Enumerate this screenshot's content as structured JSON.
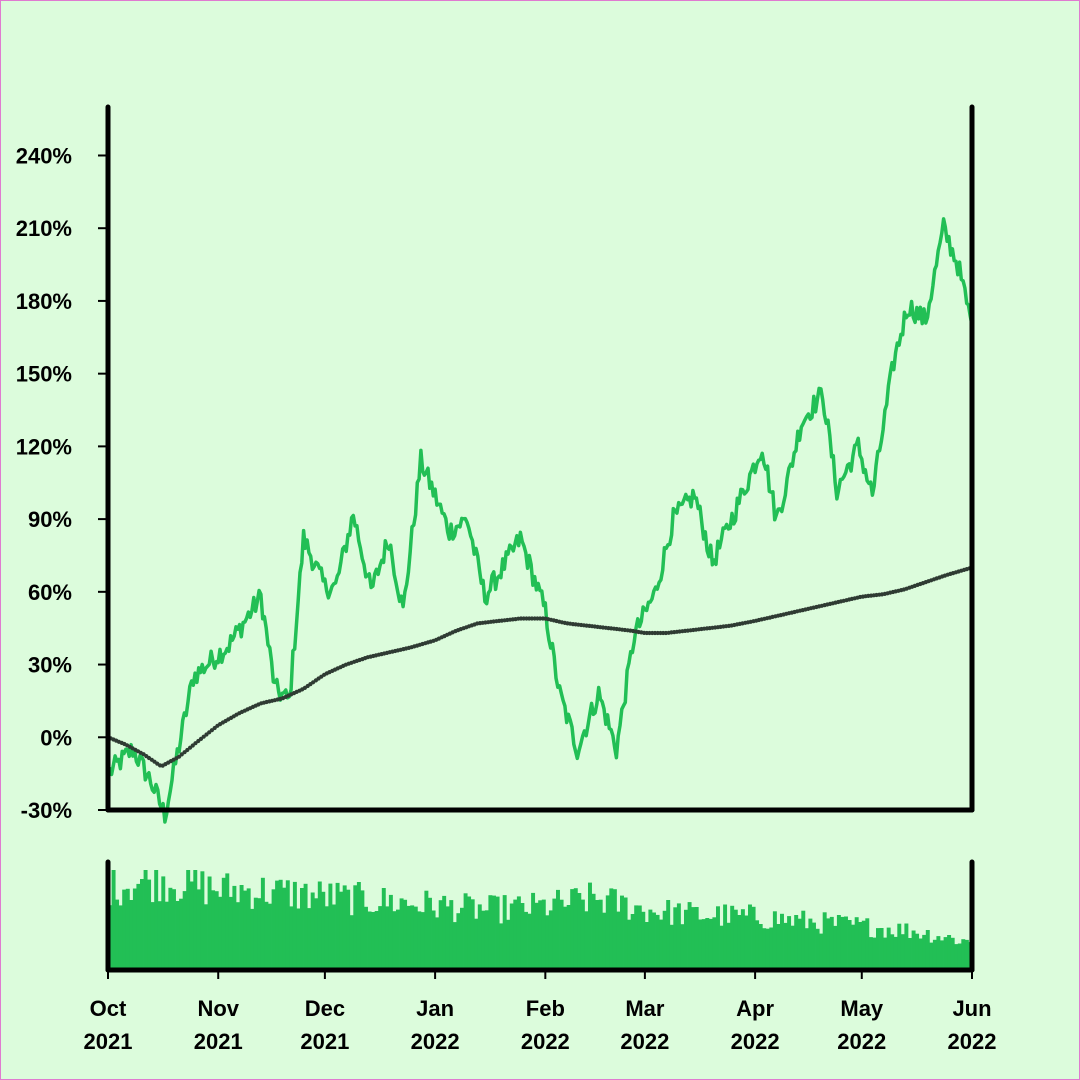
{
  "colors": {
    "background": "#dcfcdc",
    "price_line": "#22bf55",
    "moving_average": "#2f3b33",
    "volume_bars": "#22bf55",
    "axes": "#000000",
    "border": "#e07ad0"
  },
  "chart_data": [
    {
      "type": "line",
      "title": "",
      "xlabel": "",
      "ylabel": "",
      "x_range": [
        "2021-10-01",
        "2022-06-01"
      ],
      "ylim": [
        -30,
        260
      ],
      "y_ticks": [
        "-30%",
        "0%",
        "30%",
        "60%",
        "90%",
        "120%",
        "150%",
        "180%",
        "210%",
        "240%"
      ],
      "grid": false,
      "series": [
        {
          "style": "solid",
          "x": [
            "2021-10-01",
            "2021-10-08",
            "2021-10-13",
            "2021-10-17",
            "2021-10-25",
            "2021-11-04",
            "2021-11-13",
            "2021-11-17",
            "2021-11-21",
            "2021-11-25",
            "2021-12-01",
            "2021-12-04",
            "2021-12-09",
            "2021-12-14",
            "2021-12-19",
            "2021-12-23",
            "2021-12-28",
            "2022-01-05",
            "2022-01-10",
            "2022-01-15",
            "2022-01-20",
            "2022-01-25",
            "2022-02-01",
            "2022-02-05",
            "2022-02-10",
            "2022-02-16",
            "2022-02-21",
            "2022-02-26",
            "2022-03-04",
            "2022-03-09",
            "2022-03-15",
            "2022-03-20",
            "2022-03-26",
            "2022-04-03",
            "2022-04-07",
            "2022-04-10",
            "2022-04-14",
            "2022-04-20",
            "2022-04-24",
            "2022-04-30",
            "2022-05-04",
            "2022-05-10",
            "2022-05-14",
            "2022-05-19",
            "2022-05-24",
            "2022-05-28",
            "2022-06-01"
          ],
          "y": [
            -15,
            -5,
            -18,
            -32,
            25,
            38,
            58,
            20,
            15,
            82,
            62,
            62,
            92,
            60,
            82,
            52,
            114,
            85,
            90,
            58,
            70,
            82,
            52,
            18,
            -5,
            18,
            -5,
            42,
            60,
            90,
            100,
            72,
            92,
            120,
            90,
            105,
            130,
            142,
            102,
            120,
            100,
            155,
            178,
            172,
            210,
            195,
            170
          ]
        },
        {
          "style": "dotted",
          "x": [
            "2021-10-01",
            "2021-10-06",
            "2021-10-11",
            "2021-10-16",
            "2021-10-21",
            "2021-10-26",
            "2021-11-01",
            "2021-11-07",
            "2021-11-13",
            "2021-11-19",
            "2021-11-25",
            "2021-12-01",
            "2021-12-07",
            "2021-12-13",
            "2021-12-19",
            "2021-12-25",
            "2022-01-01",
            "2022-01-07",
            "2022-01-13",
            "2022-01-19",
            "2022-01-25",
            "2022-02-01",
            "2022-02-07",
            "2022-02-13",
            "2022-02-19",
            "2022-02-25",
            "2022-03-01",
            "2022-03-07",
            "2022-03-13",
            "2022-03-19",
            "2022-03-25",
            "2022-04-01",
            "2022-04-07",
            "2022-04-13",
            "2022-04-19",
            "2022-04-25",
            "2022-05-01",
            "2022-05-07",
            "2022-05-13",
            "2022-05-19",
            "2022-05-25",
            "2022-06-01"
          ],
          "y": [
            0,
            -3,
            -7,
            -12,
            -8,
            -2,
            5,
            10,
            14,
            16,
            20,
            26,
            30,
            33,
            35,
            37,
            40,
            44,
            47,
            48,
            49,
            49,
            47,
            46,
            45,
            44,
            43,
            43,
            44,
            45,
            46,
            48,
            50,
            52,
            54,
            56,
            58,
            59,
            61,
            64,
            67,
            70
          ]
        }
      ]
    },
    {
      "type": "bar",
      "title": "",
      "x_range": [
        "2021-10-01",
        "2022-06-01"
      ],
      "x_ticks": [
        {
          "month": "Oct",
          "year": "2021"
        },
        {
          "month": "Nov",
          "year": "2021"
        },
        {
          "month": "Dec",
          "year": "2021"
        },
        {
          "month": "Jan",
          "year": "2022"
        },
        {
          "month": "Feb",
          "year": "2022"
        },
        {
          "month": "Mar",
          "year": "2022"
        },
        {
          "month": "Apr",
          "year": "2022"
        },
        {
          "month": "May",
          "year": "2022"
        },
        {
          "month": "Jun",
          "year": "2022"
        }
      ],
      "series": [
        {
          "x": [
            "2021-10-01",
            "2021-10-15",
            "2021-11-01",
            "2021-11-15",
            "2021-12-01",
            "2021-12-15",
            "2022-01-01",
            "2022-01-15",
            "2022-02-01",
            "2022-02-15",
            "2022-03-01",
            "2022-03-15",
            "2022-04-01",
            "2022-04-15",
            "2022-05-01",
            "2022-05-15",
            "2022-06-01"
          ],
          "values": [
            72,
            78,
            70,
            68,
            64,
            60,
            56,
            52,
            55,
            62,
            52,
            48,
            46,
            42,
            38,
            34,
            24
          ]
        }
      ]
    }
  ]
}
